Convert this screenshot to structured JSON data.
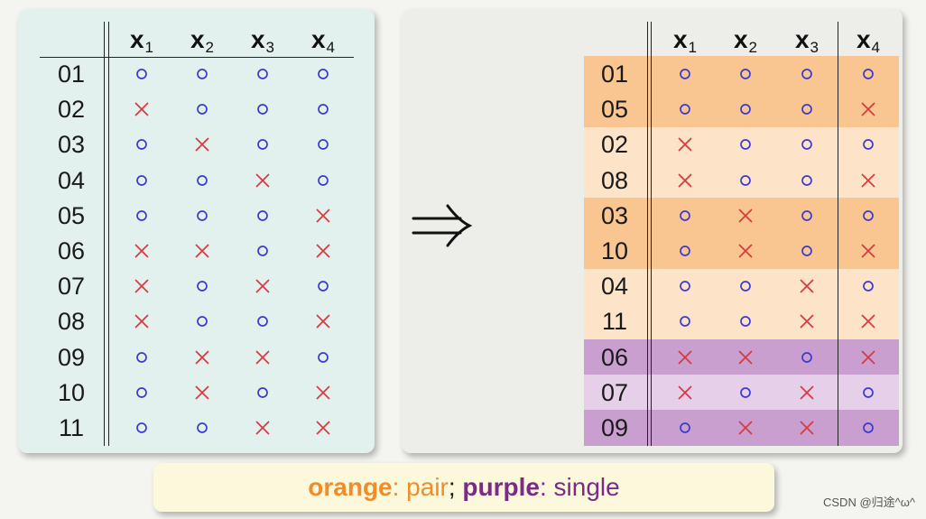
{
  "headers": [
    {
      "base": "x",
      "sub": "1"
    },
    {
      "base": "x",
      "sub": "2"
    },
    {
      "base": "x",
      "sub": "3"
    },
    {
      "base": "x",
      "sub": "4"
    }
  ],
  "left_table": [
    {
      "id": "01",
      "cells": [
        "o",
        "o",
        "o",
        "o"
      ]
    },
    {
      "id": "02",
      "cells": [
        "x",
        "o",
        "o",
        "o"
      ]
    },
    {
      "id": "03",
      "cells": [
        "o",
        "x",
        "o",
        "o"
      ]
    },
    {
      "id": "04",
      "cells": [
        "o",
        "o",
        "x",
        "o"
      ]
    },
    {
      "id": "05",
      "cells": [
        "o",
        "o",
        "o",
        "x"
      ]
    },
    {
      "id": "06",
      "cells": [
        "x",
        "x",
        "o",
        "x"
      ]
    },
    {
      "id": "07",
      "cells": [
        "x",
        "o",
        "x",
        "o"
      ]
    },
    {
      "id": "08",
      "cells": [
        "x",
        "o",
        "o",
        "x"
      ]
    },
    {
      "id": "09",
      "cells": [
        "o",
        "x",
        "x",
        "o"
      ]
    },
    {
      "id": "10",
      "cells": [
        "o",
        "x",
        "o",
        "x"
      ]
    },
    {
      "id": "11",
      "cells": [
        "o",
        "o",
        "x",
        "x"
      ]
    }
  ],
  "right_table": [
    {
      "id": "01",
      "cells": [
        "o",
        "o",
        "o",
        "o"
      ],
      "color": "orange-dark"
    },
    {
      "id": "05",
      "cells": [
        "o",
        "o",
        "o",
        "x"
      ],
      "color": "orange-dark"
    },
    {
      "id": "02",
      "cells": [
        "x",
        "o",
        "o",
        "o"
      ],
      "color": "orange-light"
    },
    {
      "id": "08",
      "cells": [
        "x",
        "o",
        "o",
        "x"
      ],
      "color": "orange-light"
    },
    {
      "id": "03",
      "cells": [
        "o",
        "x",
        "o",
        "o"
      ],
      "color": "orange-dark"
    },
    {
      "id": "10",
      "cells": [
        "o",
        "x",
        "o",
        "x"
      ],
      "color": "orange-dark"
    },
    {
      "id": "04",
      "cells": [
        "o",
        "o",
        "x",
        "o"
      ],
      "color": "orange-light"
    },
    {
      "id": "11",
      "cells": [
        "o",
        "o",
        "x",
        "x"
      ],
      "color": "orange-light"
    },
    {
      "id": "06",
      "cells": [
        "x",
        "x",
        "o",
        "x"
      ],
      "color": "purple-dark"
    },
    {
      "id": "07",
      "cells": [
        "x",
        "o",
        "x",
        "o"
      ],
      "color": "purple-light"
    },
    {
      "id": "09",
      "cells": [
        "o",
        "x",
        "x",
        "o"
      ],
      "color": "purple-dark"
    }
  ],
  "colors": {
    "orange-dark": "#f9c590",
    "orange-light": "#fde3c8",
    "purple-dark": "#c99fcf",
    "purple-light": "#e6cfe8",
    "circle": "#3a3ad0",
    "cross": "#d8393f"
  },
  "arrow_icon": "implies-arrow-icon",
  "legend": {
    "orange_word": "orange",
    "colon1": ":",
    "pair": " pair",
    "sep": ";",
    "purple_word": " purple",
    "colon2": ":",
    "single": " single"
  },
  "watermark": "CSDN @归途^ω^"
}
